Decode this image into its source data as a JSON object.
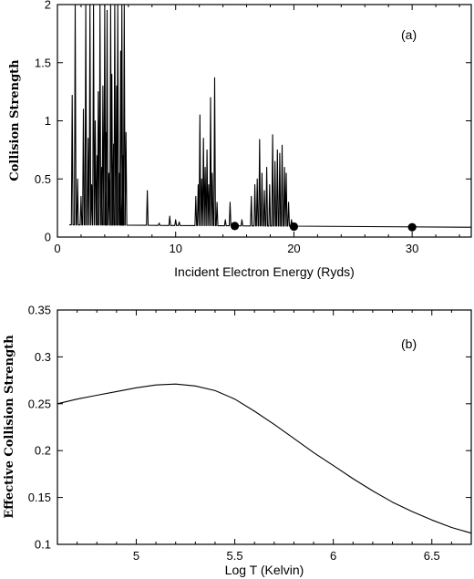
{
  "chart_data": [
    {
      "type": "line",
      "panel_label": "(a)",
      "xlabel": "Incident Electron Energy (Ryds)",
      "ylabel": "Collision Strength",
      "xlim": [
        0,
        35
      ],
      "ylim": [
        0,
        2
      ],
      "x_ticks": [
        "0",
        "10",
        "20",
        "30"
      ],
      "x_tick_values": [
        0,
        10,
        20,
        30
      ],
      "y_ticks": [
        "0",
        "0.5",
        "1",
        "1.5",
        "2"
      ],
      "y_tick_values": [
        0,
        0.5,
        1,
        1.5,
        2
      ],
      "series": [
        {
          "style": "resonance-spikes",
          "background": {
            "x": [
              1.0,
              35.0
            ],
            "y": [
              0.105,
              0.085
            ]
          },
          "spikes": [
            {
              "x": 1.25,
              "y": 1.22
            },
            {
              "x": 1.5,
              "y": 2.0
            },
            {
              "x": 1.7,
              "y": 0.5
            },
            {
              "x": 2.0,
              "y": 0.35
            },
            {
              "x": 2.2,
              "y": 1.1
            },
            {
              "x": 2.4,
              "y": 2.0
            },
            {
              "x": 2.6,
              "y": 0.85
            },
            {
              "x": 2.75,
              "y": 2.0
            },
            {
              "x": 2.9,
              "y": 0.45
            },
            {
              "x": 3.05,
              "y": 2.0
            },
            {
              "x": 3.2,
              "y": 1.0
            },
            {
              "x": 3.35,
              "y": 0.7
            },
            {
              "x": 3.45,
              "y": 1.25
            },
            {
              "x": 3.6,
              "y": 2.0
            },
            {
              "x": 3.75,
              "y": 0.6
            },
            {
              "x": 3.85,
              "y": 1.3
            },
            {
              "x": 4.0,
              "y": 2.0
            },
            {
              "x": 4.1,
              "y": 0.9
            },
            {
              "x": 4.2,
              "y": 1.95
            },
            {
              "x": 4.35,
              "y": 0.55
            },
            {
              "x": 4.5,
              "y": 2.0
            },
            {
              "x": 4.6,
              "y": 1.4
            },
            {
              "x": 4.75,
              "y": 0.8
            },
            {
              "x": 4.85,
              "y": 2.0
            },
            {
              "x": 5.0,
              "y": 1.3
            },
            {
              "x": 5.1,
              "y": 2.0
            },
            {
              "x": 5.25,
              "y": 0.55
            },
            {
              "x": 5.35,
              "y": 1.6
            },
            {
              "x": 5.45,
              "y": 2.0
            },
            {
              "x": 5.55,
              "y": 0.7
            },
            {
              "x": 5.65,
              "y": 2.0
            },
            {
              "x": 5.8,
              "y": 0.9
            },
            {
              "x": 7.6,
              "y": 0.4
            },
            {
              "x": 8.6,
              "y": 0.12
            },
            {
              "x": 9.5,
              "y": 0.18
            },
            {
              "x": 10.0,
              "y": 0.15
            },
            {
              "x": 10.3,
              "y": 0.13
            },
            {
              "x": 11.7,
              "y": 0.35
            },
            {
              "x": 11.9,
              "y": 0.45
            },
            {
              "x": 12.05,
              "y": 1.05
            },
            {
              "x": 12.2,
              "y": 0.5
            },
            {
              "x": 12.35,
              "y": 0.85
            },
            {
              "x": 12.5,
              "y": 0.6
            },
            {
              "x": 12.65,
              "y": 0.75
            },
            {
              "x": 12.8,
              "y": 0.45
            },
            {
              "x": 12.95,
              "y": 1.2
            },
            {
              "x": 13.1,
              "y": 0.55
            },
            {
              "x": 13.3,
              "y": 1.37
            },
            {
              "x": 13.5,
              "y": 0.3
            },
            {
              "x": 14.2,
              "y": 0.15
            },
            {
              "x": 14.6,
              "y": 0.3
            },
            {
              "x": 15.6,
              "y": 0.15
            },
            {
              "x": 16.4,
              "y": 0.35
            },
            {
              "x": 16.7,
              "y": 0.45
            },
            {
              "x": 16.9,
              "y": 0.5
            },
            {
              "x": 17.1,
              "y": 0.84
            },
            {
              "x": 17.3,
              "y": 0.55
            },
            {
              "x": 17.5,
              "y": 0.4
            },
            {
              "x": 17.7,
              "y": 0.6
            },
            {
              "x": 17.95,
              "y": 0.45
            },
            {
              "x": 18.2,
              "y": 0.88
            },
            {
              "x": 18.4,
              "y": 0.65
            },
            {
              "x": 18.6,
              "y": 0.75
            },
            {
              "x": 18.8,
              "y": 0.72
            },
            {
              "x": 19.0,
              "y": 0.79
            },
            {
              "x": 19.2,
              "y": 0.6
            },
            {
              "x": 19.35,
              "y": 0.55
            },
            {
              "x": 19.55,
              "y": 0.3
            },
            {
              "x": 19.8,
              "y": 0.15
            }
          ]
        },
        {
          "style": "markers",
          "x": [
            15,
            20,
            30
          ],
          "y": [
            0.095,
            0.09,
            0.085
          ]
        }
      ]
    },
    {
      "type": "line",
      "panel_label": "(b)",
      "xlabel": "Log T (Kelvin)",
      "ylabel": "Effective Collision Strength",
      "xlim": [
        4.6,
        6.7
      ],
      "ylim": [
        0.1,
        0.35
      ],
      "x_ticks": [
        "5",
        "5.5",
        "6",
        "6.5"
      ],
      "x_tick_values": [
        5,
        5.5,
        6,
        6.5
      ],
      "y_ticks": [
        "0.1",
        "0.15",
        "0.2",
        "0.25",
        "0.3",
        "0.35"
      ],
      "y_tick_values": [
        0.1,
        0.15,
        0.2,
        0.25,
        0.3,
        0.35
      ],
      "series": [
        {
          "style": "line",
          "x": [
            4.6,
            4.7,
            4.8,
            4.9,
            5.0,
            5.1,
            5.2,
            5.3,
            5.4,
            5.5,
            5.6,
            5.7,
            5.8,
            5.9,
            6.0,
            6.1,
            6.2,
            6.3,
            6.4,
            6.5,
            6.6,
            6.7
          ],
          "y": [
            0.25,
            0.255,
            0.259,
            0.263,
            0.267,
            0.27,
            0.271,
            0.269,
            0.264,
            0.255,
            0.242,
            0.228,
            0.213,
            0.198,
            0.184,
            0.17,
            0.157,
            0.145,
            0.135,
            0.126,
            0.118,
            0.112
          ]
        }
      ]
    }
  ]
}
